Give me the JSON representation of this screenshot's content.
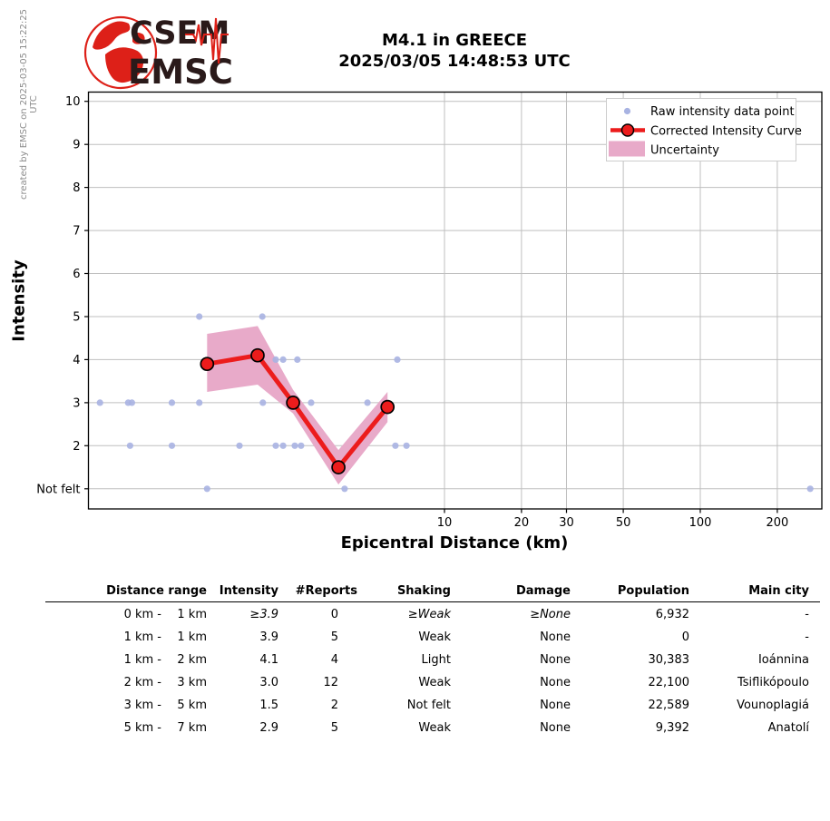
{
  "branding": {
    "logo_line1": "CSEM",
    "logo_line2": "EMSC"
  },
  "watermark": "created by EMSC on 2025-03-05 15:22:25 UTC",
  "chart_data": {
    "type": "line",
    "title": "M4.1 in GREECE",
    "subtitle": "2025/03/05 14:48:53 UTC",
    "xlabel": "Epicentral Distance (km)",
    "ylabel": "Intensity",
    "x_scale": "log",
    "x_ticks": [
      10,
      20,
      30,
      50,
      100,
      200
    ],
    "x_range_km": [
      0.41,
      300
    ],
    "y_tick_labels": [
      "Not felt",
      "2",
      "3",
      "4",
      "5",
      "6",
      "7",
      "8",
      "9",
      "10"
    ],
    "y_range": [
      0.55,
      10.2
    ],
    "grid": true,
    "legend_position": "upper right",
    "legend": [
      "Raw intensity data point",
      "Corrected Intensity Curve",
      "Uncertainty"
    ],
    "raw_points_km_intensity": [
      [
        1.1,
        5
      ],
      [
        1.94,
        5
      ],
      [
        2.19,
        4
      ],
      [
        2.34,
        4
      ],
      [
        2.66,
        4
      ],
      [
        6.54,
        4
      ],
      [
        0.45,
        3
      ],
      [
        0.58,
        3
      ],
      [
        0.6,
        3
      ],
      [
        0.86,
        3
      ],
      [
        1.1,
        3
      ],
      [
        1.95,
        3
      ],
      [
        2.56,
        3
      ],
      [
        3.01,
        3
      ],
      [
        5.0,
        3
      ],
      [
        0.59,
        2
      ],
      [
        0.86,
        2
      ],
      [
        1.58,
        2
      ],
      [
        2.19,
        2
      ],
      [
        2.34,
        2
      ],
      [
        2.6,
        2
      ],
      [
        2.75,
        2
      ],
      [
        6.43,
        2
      ],
      [
        7.1,
        2
      ],
      [
        1.18,
        1
      ],
      [
        4.07,
        1
      ],
      [
        269,
        1
      ]
    ],
    "corrected_curve": {
      "distance_km": [
        1.18,
        1.86,
        2.56,
        3.85,
        5.99
      ],
      "intensity": [
        3.9,
        4.1,
        3.0,
        1.5,
        2.9
      ]
    },
    "uncertainty_band": {
      "distance_km": [
        1.18,
        1.86,
        2.56,
        3.85,
        5.99
      ],
      "upper": [
        4.6,
        4.78,
        3.3,
        1.9,
        3.25
      ],
      "lower": [
        3.25,
        3.42,
        2.75,
        1.1,
        2.55
      ]
    },
    "colors": {
      "raw_point": "#a8b3e2",
      "curve": "#ec1c1c",
      "uncertainty": "#e8aac9",
      "grid": "#bfbfbf"
    }
  },
  "table": {
    "headers": [
      "Distance range",
      "Intensity",
      "#Reports",
      "Shaking",
      "Damage",
      "Population",
      "Main city"
    ],
    "rows": [
      [
        "0 km -",
        "1 km",
        "≥3.9",
        "0",
        "≥Weak",
        "≥None",
        "6,932",
        "-"
      ],
      [
        "1 km -",
        "1 km",
        "3.9",
        "5",
        "Weak",
        "None",
        "0",
        "-"
      ],
      [
        "1 km -",
        "2 km",
        "4.1",
        "4",
        "Light",
        "None",
        "30,383",
        "Ioánnina"
      ],
      [
        "2 km -",
        "3 km",
        "3.0",
        "12",
        "Weak",
        "None",
        "22,100",
        "Tsiflikópoulo"
      ],
      [
        "3 km -",
        "5 km",
        "1.5",
        "2",
        "Not felt",
        "None",
        "22,589",
        "Vounoplagiá"
      ],
      [
        "5 km -",
        "7 km",
        "2.9",
        "5",
        "Weak",
        "None",
        "9,392",
        "Anatolí"
      ]
    ]
  }
}
